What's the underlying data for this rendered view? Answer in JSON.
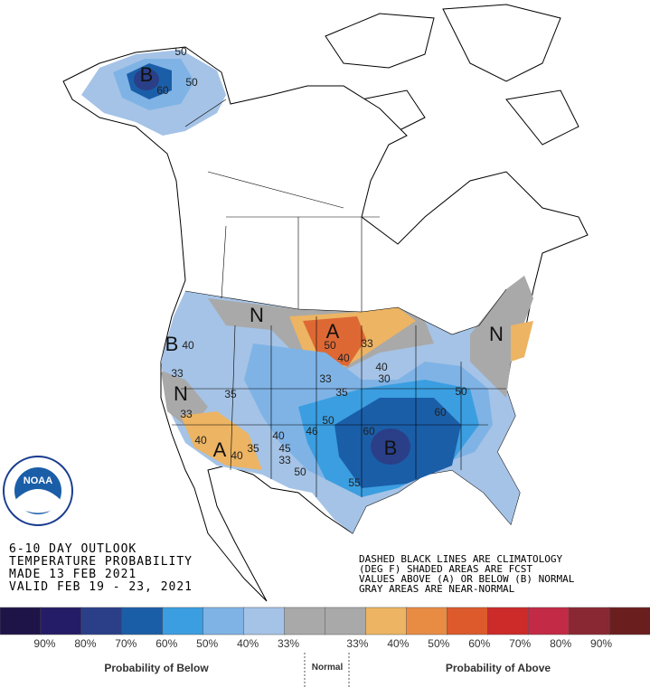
{
  "outlook_lines": [
    "6-10 DAY OUTLOOK",
    "TEMPERATURE PROBABILITY",
    "MADE  13 FEB 2021",
    "VALID  FEB 19 - 23, 2021"
  ],
  "notes": [
    "DASHED BLACK LINES ARE CLIMATOLOGY",
    "(DEG F) SHADED AREAS ARE FCST",
    "VALUES ABOVE (A) OR BELOW (B) NORMAL",
    "GRAY AREAS ARE NEAR-NORMAL"
  ],
  "logo": "NOAA",
  "legend": {
    "colors": [
      "#1e1448",
      "#241c66",
      "#2a3f88",
      "#1b5ea8",
      "#3b9ee0",
      "#7fb3e6",
      "#a5c3e6",
      "#a9a9a9",
      "#a9a9a9",
      "#ecb463",
      "#e88c44",
      "#dc5a2c",
      "#cd2a2a",
      "#c32a45",
      "#892732",
      "#6b1e1e"
    ],
    "labels": [
      "90%",
      "80%",
      "70%",
      "60%",
      "50%",
      "40%",
      "33%",
      "33%",
      "40%",
      "50%",
      "60%",
      "70%",
      "80%",
      "90%"
    ],
    "below": "Probability of Below",
    "normal": "Normal",
    "above": "Probability of Above"
  },
  "map_labels": [
    "B",
    "50",
    "60",
    "50",
    "N",
    "A",
    "50",
    "33",
    "40",
    "B",
    "40",
    "33",
    "N",
    "33",
    "35",
    "40",
    "A",
    "40",
    "35",
    "45",
    "33",
    "40",
    "46",
    "50",
    "35",
    "40",
    "60",
    "B",
    "60",
    "50",
    "N",
    "33",
    "55",
    "50",
    "30"
  ]
}
